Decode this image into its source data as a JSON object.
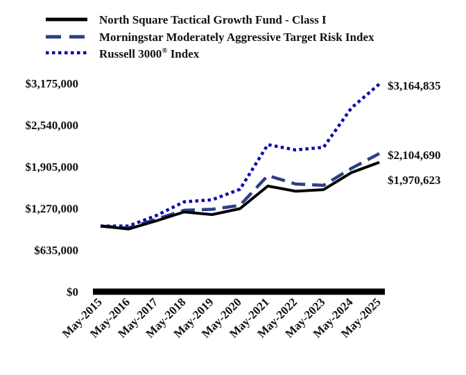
{
  "chart_data": {
    "type": "line",
    "title": "",
    "xlabel": "",
    "ylabel": "",
    "categories": [
      "May-2015",
      "May-2016",
      "May-2017",
      "May-2018",
      "May-2019",
      "May-2020",
      "May-2021",
      "May-2022",
      "May-2023",
      "May-2024",
      "May-2025"
    ],
    "ylim": [
      0,
      3175000
    ],
    "y_ticks": [
      {
        "value": 0,
        "label": "$0"
      },
      {
        "value": 635000,
        "label": "$635,000"
      },
      {
        "value": 1270000,
        "label": "$1,270,000"
      },
      {
        "value": 1905000,
        "label": "$1,905,000"
      },
      {
        "value": 2540000,
        "label": "$2,540,000"
      },
      {
        "value": 3175000,
        "label": "$3,175,000"
      }
    ],
    "grid": false,
    "legend_position": "top-left",
    "series": [
      {
        "name": "North Square Tactical Growth Fund - Class I",
        "color": "#000000",
        "style": "solid",
        "values": [
          1000000,
          955000,
          1080000,
          1215000,
          1175000,
          1265000,
          1610000,
          1530000,
          1555000,
          1815000,
          1970623
        ],
        "end_label": "$1,970,623"
      },
      {
        "name": "Morningstar Moderately Aggressive Target Risk Index",
        "color": "#2b3f87",
        "style": "dashed",
        "values": [
          1000000,
          970000,
          1105000,
          1240000,
          1255000,
          1315000,
          1770000,
          1640000,
          1620000,
          1880000,
          2104690
        ],
        "end_label": "$2,104,690"
      },
      {
        "name": "Russell 3000® Index",
        "name_main": "Russell 3000",
        "name_sup": "®",
        "name_tail": " Index",
        "color": "#0a0aa8",
        "style": "dotted",
        "values": [
          1000000,
          1000000,
          1160000,
          1370000,
          1400000,
          1560000,
          2240000,
          2160000,
          2200000,
          2800000,
          3164835
        ],
        "end_label": "$3,164,835"
      }
    ]
  }
}
